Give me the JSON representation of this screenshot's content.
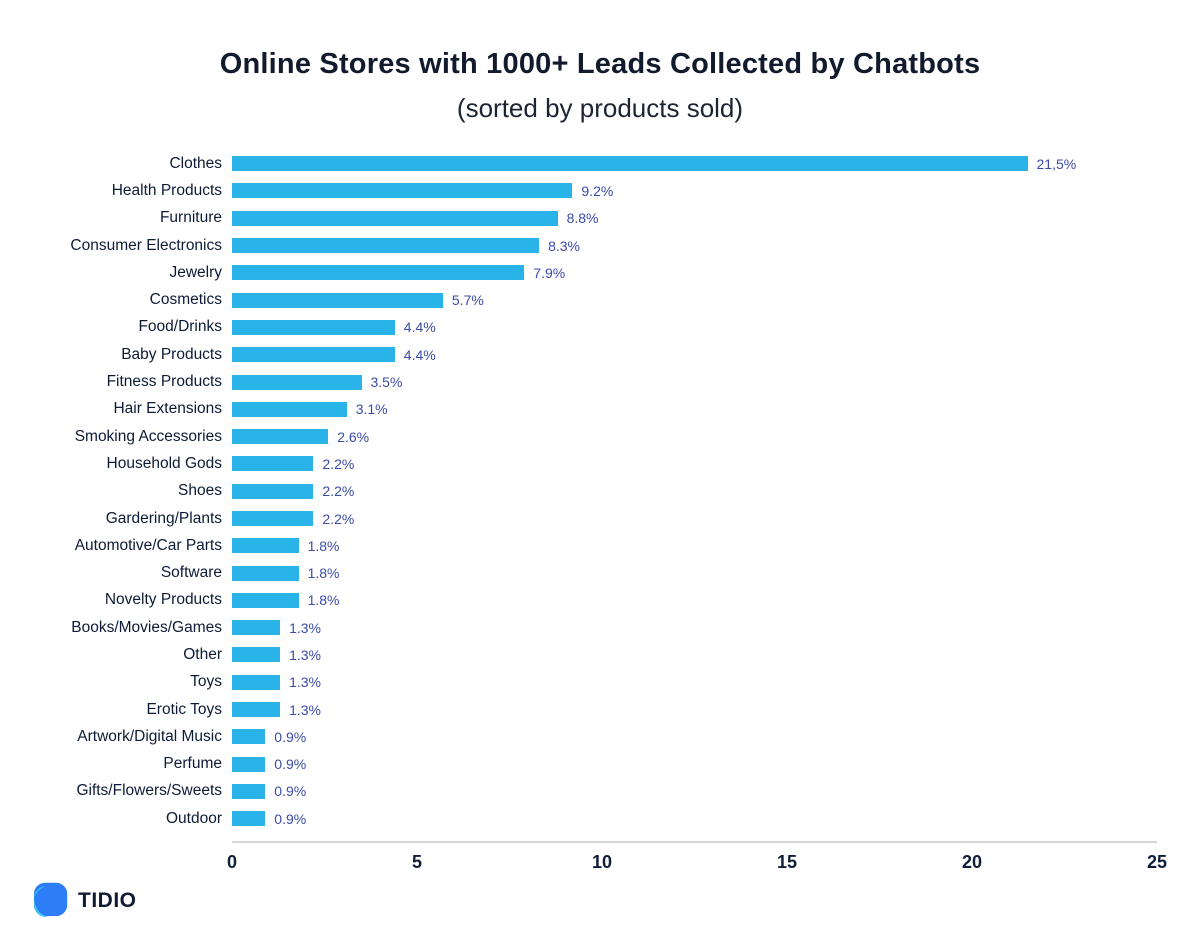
{
  "header": {
    "title": "Online Stores with 1000+ Leads Collected by Chatbots",
    "subtitle": "(sorted by products sold)"
  },
  "chart_data": {
    "type": "bar",
    "orientation": "horizontal",
    "title": "Online Stores with 1000+ Leads Collected by Chatbots",
    "subtitle": "(sorted by products sold)",
    "categories": [
      "Clothes",
      "Health Products",
      "Furniture",
      "Consumer Electronics",
      "Jewelry",
      "Cosmetics",
      "Food/Drinks",
      "Baby Products",
      "Fitness Products",
      "Hair Extensions",
      "Smoking Accessories",
      "Household Gods",
      "Shoes",
      "Gardering/Plants",
      "Automotive/Car Parts",
      "Software",
      "Novelty Products",
      "Books/Movies/Games",
      "Other",
      "Toys",
      "Erotic Toys",
      "Artwork/Digital Music",
      "Perfume",
      "Gifts/Flowers/Sweets",
      "Outdoor"
    ],
    "values": [
      21.5,
      9.2,
      8.8,
      8.3,
      7.9,
      5.7,
      4.4,
      4.4,
      3.5,
      3.1,
      2.6,
      2.2,
      2.2,
      2.2,
      1.8,
      1.8,
      1.8,
      1.3,
      1.3,
      1.3,
      1.3,
      0.9,
      0.9,
      0.9,
      0.9
    ],
    "value_labels": [
      "21,5%",
      "9.2%",
      "8.8%",
      "8.3%",
      "7.9%",
      "5.7%",
      "4.4%",
      "4.4%",
      "3.5%",
      "3.1%",
      "2.6%",
      "2.2%",
      "2.2%",
      "2.2%",
      "1.8%",
      "1.8%",
      "1.8%",
      "1.3%",
      "1.3%",
      "1.3%",
      "1.3%",
      "0.9%",
      "0.9%",
      "0.9%",
      "0.9%"
    ],
    "xticks": [
      0,
      5,
      10,
      15,
      20,
      25
    ],
    "xlim": [
      0,
      25
    ],
    "xlabel": "",
    "ylabel": "",
    "grid": false,
    "legend": false,
    "bar_color": "#29b3e8",
    "value_label_color": "#3b4ba8",
    "category_label_color": "#0d1b35",
    "tick_label_color": "#0f1e38"
  },
  "footer": {
    "logo_text": "TIDIO"
  }
}
